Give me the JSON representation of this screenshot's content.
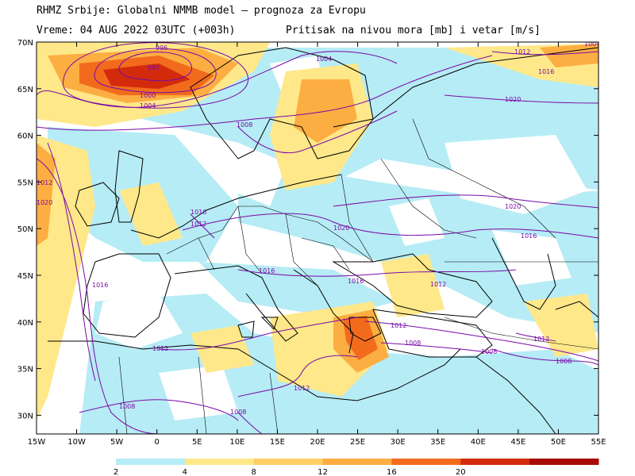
{
  "title_line1": "RHMZ Srbije: Globalni NMMB model — prognoza za Evropu",
  "title_line2_left": "Vreme: 04 AUG 2022 03UTC (+003h)",
  "title_line2_right": "Pritisak na nivou mora [mb] i vetar [m/s]",
  "lat_labels": [
    "70N",
    "65N",
    "60N",
    "55N",
    "50N",
    "45N",
    "40N",
    "35N",
    "30N"
  ],
  "lon_labels": [
    "15W",
    "10W",
    "5W",
    "0",
    "5E",
    "10E",
    "15E",
    "20E",
    "25E",
    "30E",
    "35E",
    "40E",
    "45E",
    "50E",
    "55E"
  ],
  "colorbar": {
    "labels": [
      "2",
      "4",
      "8",
      "12",
      "16",
      "20"
    ],
    "colors": [
      "#b6ecf5",
      "#ffe88a",
      "#ffcf66",
      "#fcae42",
      "#f26b1d",
      "#d42a0c",
      "#a80a08"
    ]
  },
  "isobars": [
    {
      "label": "996"
    },
    {
      "label": "992"
    },
    {
      "label": "1000"
    },
    {
      "label": "1004"
    },
    {
      "label": "1004"
    },
    {
      "label": "1008"
    },
    {
      "label": "1012"
    },
    {
      "label": "1016"
    },
    {
      "label": "1020"
    },
    {
      "label": "1020"
    },
    {
      "label": "1020"
    },
    {
      "label": "1016"
    },
    {
      "label": "1012"
    },
    {
      "label": "1016"
    },
    {
      "label": "1016"
    },
    {
      "label": "1016"
    },
    {
      "label": "1012"
    },
    {
      "label": "1012"
    },
    {
      "label": "1008"
    },
    {
      "label": "1012"
    },
    {
      "label": "1012"
    },
    {
      "label": "1008"
    },
    {
      "label": "1008"
    },
    {
      "label": "1008"
    },
    {
      "label": "1012"
    },
    {
      "label": "1008"
    },
    {
      "label": "1012"
    },
    {
      "label": "1020"
    },
    {
      "label": "1004"
    },
    {
      "label": "1016"
    }
  ]
}
